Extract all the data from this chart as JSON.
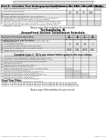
{
  "alert_text": "ALERT: See Estimated Payment Deadline Extension for Tax Year 2020 on Page 1 before calculating",
  "part2_title": "Part II – Calculate Your Underpayment and Interest for Each Calendar Quarter",
  "part2_subtitle": "See Instructions",
  "col_headers": [
    "A",
    "B",
    "C",
    "D",
    "Total"
  ],
  "part2_rows": [
    {
      "num": "1",
      "text": "Enter the required annual payment from Part 1, Line 4. Enter the\nsame amount in Columns A, B, C, and D."
    },
    {
      "num": "2",
      "text": "Installment percentages",
      "values": [
        ".25",
        ".50",
        ".75",
        "1.00"
      ]
    },
    {
      "num": "3",
      "text": "Multiply Line 1 by Line 2"
    },
    {
      "num": "4",
      "text": "Enter estimated tax payments. See Instructions."
    },
    {
      "num": "5",
      "text": "Underpayment: Subtract Line 4 from Line 3. If Line 4 exceeds or\nequals Line 3 in any column, enter “0” in that column."
    },
    {
      "num": "6",
      "text": "Interest: Use factors A, B, C, and D of Schedule B and multiply each\nfactor by the amount on Line 5 (Columns A, B, C, and D). Enter the\ntotal in the Total Column and on Form CT-1065/CT-1120SI, Part 1,\nSchedule A, Line 6a."
    }
  ],
  "part2_row_heights": [
    7.5,
    4.5,
    3.5,
    3.5,
    6.5,
    9.5
  ],
  "keepcopy1": "Keep a copy of this worksheet for your records.",
  "schedule_a_title": "Schedule A",
  "schedule_a_subtitle": "Annualized Income Installment Schedule",
  "schedule_a_note": "See Schedule A – Annualized Income Installment General Instructions on Page 4",
  "fiscal_year_label": "Fiscal year filers should adjust dates\nto reflect their fiscal year. See below.",
  "date_labels": [
    "1-1-2020\nto\n3/31/2020",
    "1-1-2020\nto\n5/31/2020",
    "1-1-2020\nto\n8/31/2020",
    "1-1-2020\nto\n12/31/2020"
  ],
  "col_letters": [
    "A",
    "B",
    "C",
    "D"
  ],
  "sched_a_rows": [
    {
      "num": "1",
      "text": "Enter your income subject to Pass-Through Entity Tax\nfor each period."
    },
    {
      "num": "2",
      "text": "Annualization amounts",
      "values": [
        "4",
        "2.4",
        "1.5",
        "1"
      ]
    },
    {
      "num": "3",
      "text": "Annualized income: Multiply Line 1 by Line 2"
    },
    {
      "num": "4",
      "text": "Tax amount: Multiply Line 3 by 6.99% (.0699)"
    },
    {
      "num": "5",
      "text": "Applicable percentages",
      "values": [
        "0.225",
        "0.45",
        "0.675",
        "0.90"
      ]
    },
    {
      "num": "6",
      "text": "Multiply Line 4 by Line 5"
    }
  ],
  "sched_a_row_heights": [
    6.0,
    3.5,
    3.5,
    3.5,
    3.5,
    3.5
  ],
  "complete_lines": "Complete Lines 1 - 16 in one column before going to the next column.",
  "lines_7_16": [
    {
      "num": "7",
      "text": "Add the amounts in all preceding columns of Line 12"
    },
    {
      "num": "8",
      "text": "Annualized income installment: Subtract Line 7 from Line 6"
    },
    {
      "num": "9",
      "text": "Enter 25% of the required annual payment from Part 1, Line 4"
    },
    {
      "num": "10",
      "text": "Enter Line 10 of the preceding column of this schedule"
    },
    {
      "num": "11",
      "text": "Add Line 9 plus Line 10"
    },
    {
      "num": "12",
      "text": "Subtract Line 8; if less than zero, enter 0"
    },
    {
      "num": "13",
      "text": "Enter the smaller of Line 8 or Line 11"
    },
    {
      "num": "14",
      "text": "Enter this amount from Line 13, Column (or here and on\nForm CT-1065, Line 3, Column A)"
    },
    {
      "num": "15",
      "text": "Add Line 13, Column (a) and Line 14, Column (a).\nEnter here and on Part II, Line 3, Column (b)"
    },
    {
      "num": "16a",
      "text": "Add Line 13, Column (a) you and Line 15, Column (b).\nEnter here and on Part II, Line 3, Column (c)"
    },
    {
      "num": "16b",
      "text": "Add Line 13, Column (a), (b), and (c).\nEnter here and on Part II, Line 3, Column (d)"
    }
  ],
  "lines_7_16_heights": [
    3.2,
    3.2,
    3.2,
    3.2,
    3.2,
    3.2,
    3.2,
    5.0,
    5.0,
    5.0,
    5.0
  ],
  "lines_7_16_shaded": [
    [
      false,
      false,
      false,
      false
    ],
    [
      false,
      false,
      false,
      false
    ],
    [
      false,
      false,
      false,
      false
    ],
    [
      false,
      false,
      false,
      false
    ],
    [
      false,
      false,
      false,
      false
    ],
    [
      false,
      false,
      false,
      false
    ],
    [
      false,
      false,
      false,
      false
    ],
    [
      true,
      false,
      false,
      false
    ],
    [
      true,
      true,
      false,
      false
    ],
    [
      true,
      true,
      true,
      false
    ],
    [
      true,
      true,
      true,
      true
    ]
  ],
  "fiscal_year_title": "Fiscal Year Filers",
  "fiscal_year_text": "Replace the dates in the columns with the following:\nColumn A: First day of the first month of the fiscal year through the last day of the third month.\nColumn B: First day of the first month of the fiscal year through the last day of the fifth month.\nColumn C: First day of the first month of the fiscal year through the last day of the eighth month.\nColumn D: First day of the first month of the fiscal year through the last day of the twelfth month.",
  "keepcopy2": "Keep a copy of this worksheet for your records.",
  "footer_left": "Worksheet CT-2210PE - Schedules A & B Rev. 12/20",
  "footer_right": "Page (2 of 4)"
}
